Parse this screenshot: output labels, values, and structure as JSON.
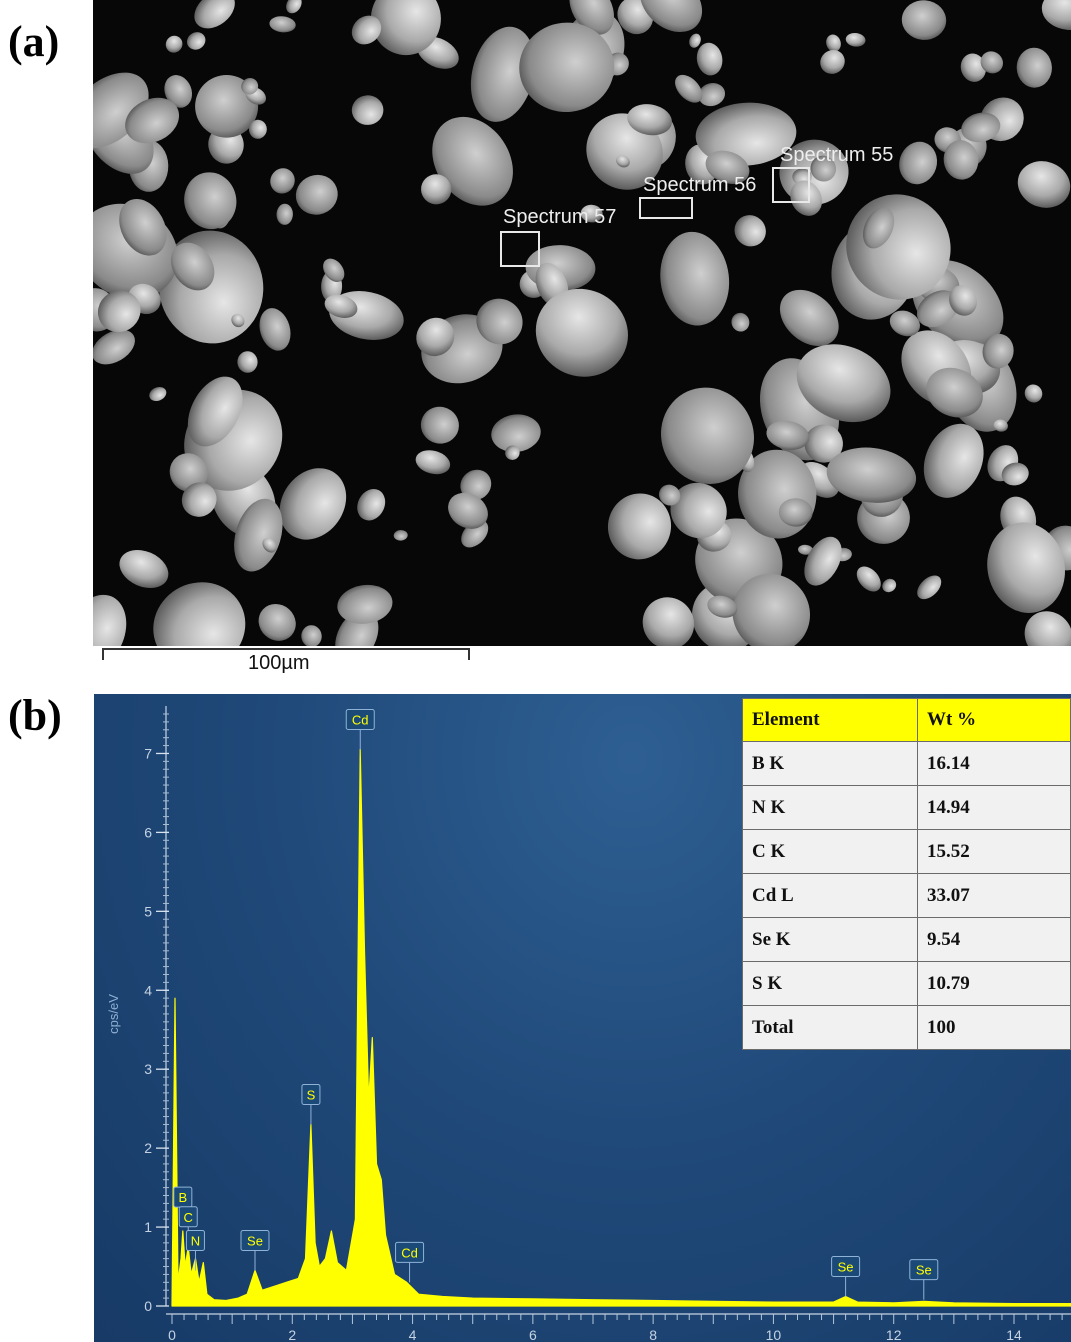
{
  "panel_labels": {
    "a": "(a)",
    "b": "(b)"
  },
  "sem_image": {
    "spectrum_labels": [
      "Spectrum 55",
      "Spectrum 56",
      "Spectrum 57"
    ],
    "scale_bar_label": "100µm"
  },
  "composition_table": {
    "headers": [
      "Element",
      "Wt %"
    ],
    "rows": [
      [
        "B K",
        "16.14"
      ],
      [
        "N K",
        "14.94"
      ],
      [
        "C K",
        "15.52"
      ],
      [
        "Cd L",
        "33.07"
      ],
      [
        "Se K",
        "9.54"
      ],
      [
        "S K",
        "10.79"
      ],
      [
        "Total",
        "100"
      ]
    ]
  },
  "chart_data": {
    "type": "line",
    "xlabel": "",
    "ylabel": "cps/eV",
    "xlim": [
      0,
      15
    ],
    "ylim": [
      0,
      7.5
    ],
    "x_ticks": [
      0,
      2,
      4,
      6,
      8,
      10,
      12,
      14
    ],
    "y_ticks": [
      0,
      1,
      2,
      3,
      4,
      5,
      6,
      7
    ],
    "series": [
      {
        "color": "#ffff00",
        "points": [
          [
            0.0,
            0.0
          ],
          [
            0.05,
            3.9
          ],
          [
            0.1,
            0.3
          ],
          [
            0.15,
            0.6
          ],
          [
            0.18,
            0.95
          ],
          [
            0.22,
            0.5
          ],
          [
            0.27,
            0.75
          ],
          [
            0.32,
            0.4
          ],
          [
            0.39,
            0.6
          ],
          [
            0.45,
            0.3
          ],
          [
            0.52,
            0.55
          ],
          [
            0.58,
            0.15
          ],
          [
            0.7,
            0.08
          ],
          [
            0.9,
            0.07
          ],
          [
            1.1,
            0.1
          ],
          [
            1.25,
            0.15
          ],
          [
            1.38,
            0.45
          ],
          [
            1.5,
            0.2
          ],
          [
            1.7,
            0.25
          ],
          [
            1.9,
            0.3
          ],
          [
            2.1,
            0.35
          ],
          [
            2.22,
            0.6
          ],
          [
            2.31,
            2.3
          ],
          [
            2.38,
            0.8
          ],
          [
            2.45,
            0.5
          ],
          [
            2.55,
            0.6
          ],
          [
            2.65,
            0.95
          ],
          [
            2.75,
            0.55
          ],
          [
            2.9,
            0.45
          ],
          [
            3.05,
            1.1
          ],
          [
            3.13,
            7.05
          ],
          [
            3.2,
            4.5
          ],
          [
            3.27,
            2.6
          ],
          [
            3.33,
            3.4
          ],
          [
            3.4,
            1.8
          ],
          [
            3.48,
            1.6
          ],
          [
            3.55,
            0.9
          ],
          [
            3.7,
            0.4
          ],
          [
            3.9,
            0.3
          ],
          [
            4.1,
            0.15
          ],
          [
            4.5,
            0.12
          ],
          [
            5.0,
            0.1
          ],
          [
            6.0,
            0.09
          ],
          [
            7.0,
            0.08
          ],
          [
            8.0,
            0.07
          ],
          [
            9.0,
            0.06
          ],
          [
            10.0,
            0.05
          ],
          [
            11.0,
            0.05
          ],
          [
            11.2,
            0.12
          ],
          [
            11.4,
            0.05
          ],
          [
            12.0,
            0.04
          ],
          [
            12.5,
            0.06
          ],
          [
            13.0,
            0.04
          ],
          [
            14.0,
            0.03
          ],
          [
            15.0,
            0.03
          ]
        ]
      }
    ],
    "annotations": [
      {
        "label": "Cd",
        "x": 3.13,
        "y": 7.05
      },
      {
        "label": "S",
        "x": 2.31,
        "y": 2.3
      },
      {
        "label": "B",
        "x": 0.18,
        "y": 1.0
      },
      {
        "label": "C",
        "x": 0.27,
        "y": 0.75
      },
      {
        "label": "N",
        "x": 0.39,
        "y": 0.45
      },
      {
        "label": "Se",
        "x": 1.38,
        "y": 0.45
      },
      {
        "label": "Cd",
        "x": 3.95,
        "y": 0.3
      },
      {
        "label": "Se",
        "x": 11.2,
        "y": 0.12
      },
      {
        "label": "Se",
        "x": 12.5,
        "y": 0.08
      }
    ]
  }
}
